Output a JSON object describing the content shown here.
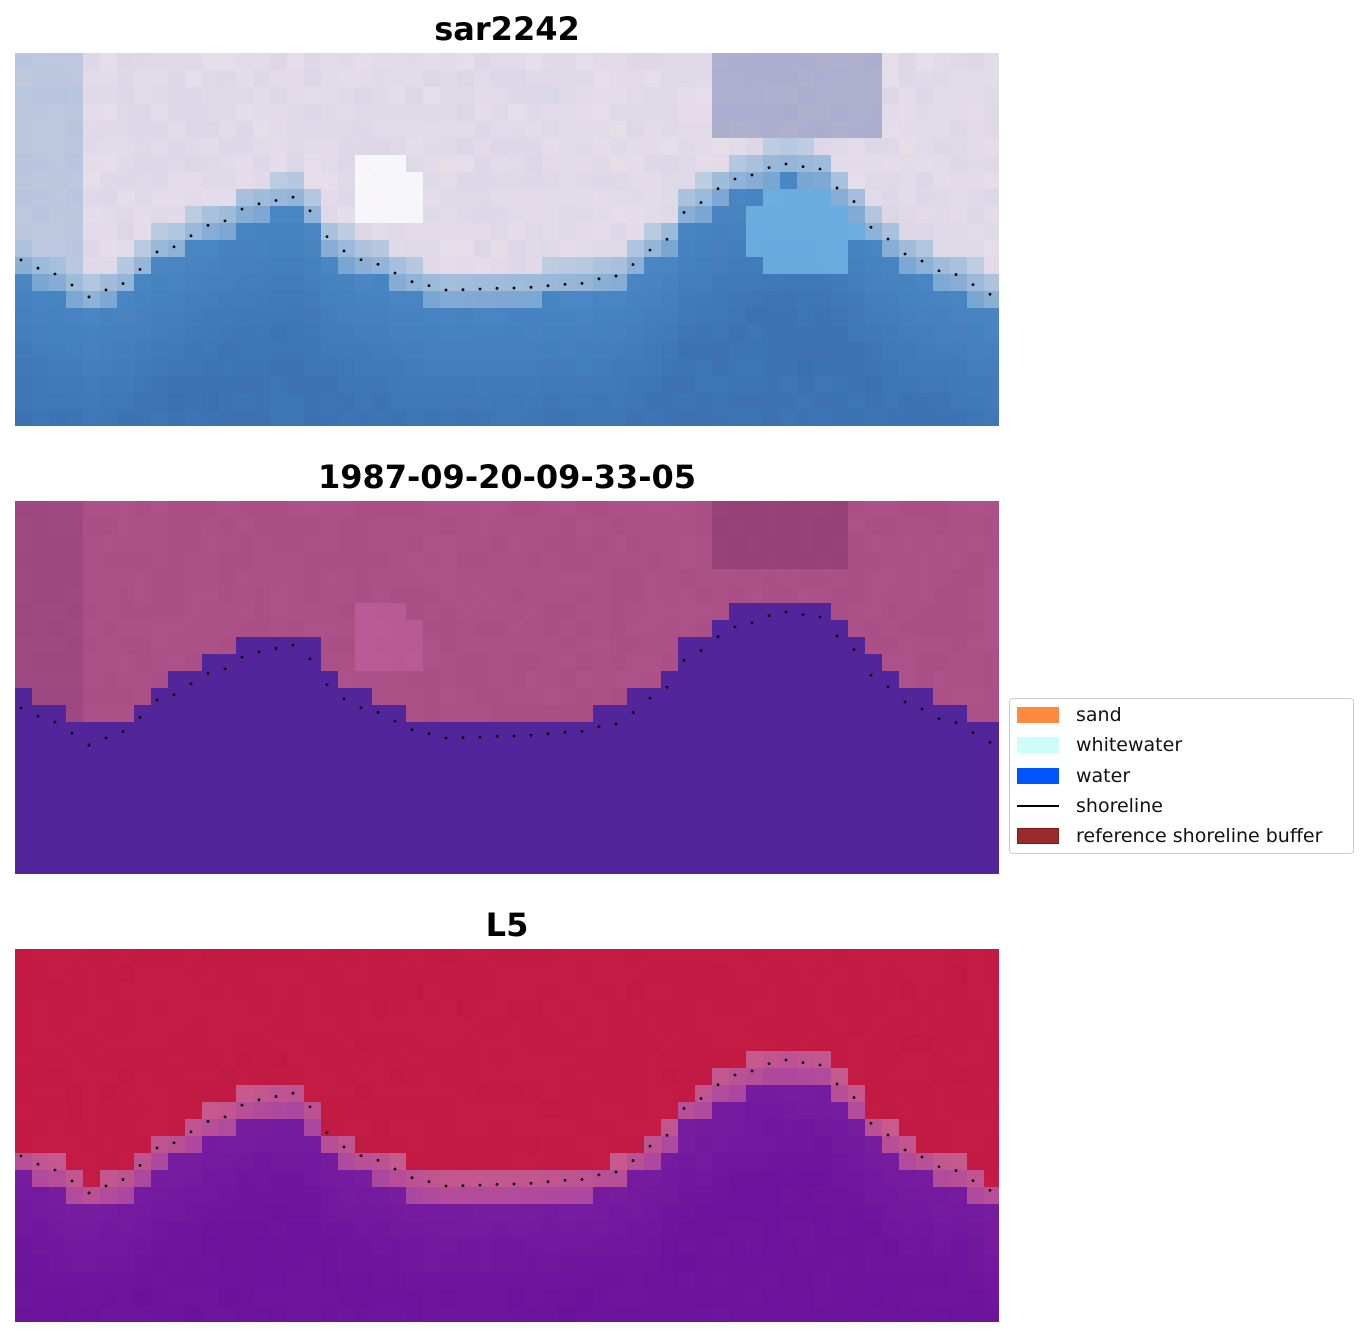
{
  "panels": [
    {
      "title": "sar2242",
      "kind": "rgb"
    },
    {
      "title": "1987-09-20-09-33-05",
      "kind": "classification"
    },
    {
      "title": "L5",
      "kind": "index"
    }
  ],
  "legend": {
    "items": [
      {
        "label": "sand",
        "color": "#ff8a3d",
        "shape": "patch"
      },
      {
        "label": "whitewater",
        "color": "#ccfffa",
        "shape": "patch"
      },
      {
        "label": "water",
        "color": "#0055ff",
        "shape": "patch"
      },
      {
        "label": "shoreline",
        "color": "#000000",
        "shape": "line"
      },
      {
        "label": "reference shoreline buffer",
        "color": "#9b2a2a",
        "shape": "patch"
      }
    ]
  },
  "colors": {
    "land_tint": "#d9d4e6",
    "water_blue": "#3f7fbe",
    "class_land": "#a94f86",
    "class_water": "#53259a",
    "index_high": "#c01942",
    "index_low": "#6a119c",
    "shoreline_dots": "#000000"
  }
}
